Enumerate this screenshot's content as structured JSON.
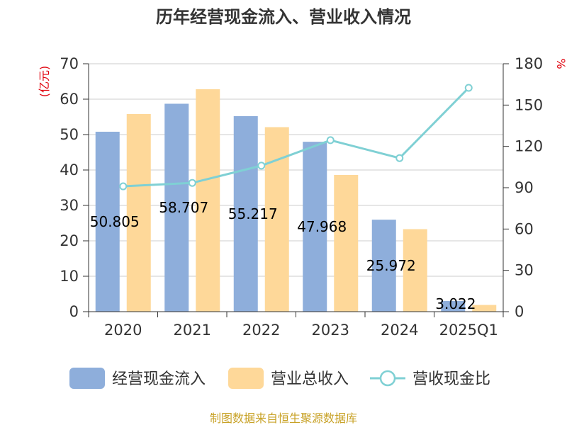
{
  "chart_data": {
    "type": "bar",
    "title": "历年经营现金流入、营业收入情况",
    "categories": [
      "2020",
      "2021",
      "2022",
      "2023",
      "2024",
      "2025Q1"
    ],
    "y_left": {
      "label": "(亿元)",
      "ticks": [
        "0",
        "10",
        "20",
        "30",
        "40",
        "50",
        "60",
        "70"
      ],
      "ylim": [
        0,
        70
      ]
    },
    "y_right": {
      "label": "%",
      "ticks": [
        "0",
        "30",
        "60",
        "90",
        "120",
        "150",
        "180"
      ],
      "ylim": [
        0,
        180
      ]
    },
    "series": [
      {
        "name": "经营现金流入",
        "kind": "bar",
        "axis": "left",
        "color": "#8eaedb",
        "values": [
          50.805,
          58.707,
          55.217,
          47.968,
          25.972,
          3.022
        ],
        "labels": [
          "50.805",
          "58.707",
          "55.217",
          "47.968",
          "25.972",
          "3.022"
        ]
      },
      {
        "name": "营业总收入",
        "kind": "bar",
        "axis": "left",
        "color": "#fed899",
        "values": [
          55.8,
          62.8,
          52.1,
          38.6,
          23.3,
          1.9
        ]
      },
      {
        "name": "营收现金比",
        "kind": "line",
        "axis": "right",
        "color": "#7fd0d4",
        "values": [
          91.0,
          93.5,
          106.0,
          124.5,
          111.5,
          162.5
        ]
      }
    ],
    "grid": true,
    "legend": "bottom"
  },
  "source": "制图数据来自恒生聚源数据库"
}
